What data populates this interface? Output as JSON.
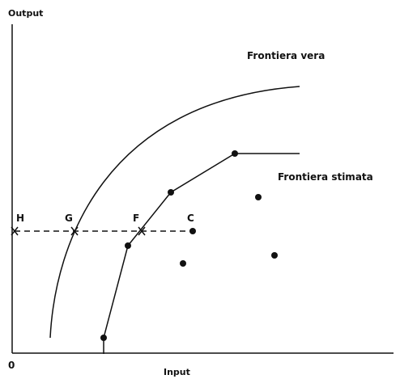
{
  "axes": {
    "y_label": "Output",
    "x_label": "Input",
    "origin": "0"
  },
  "curves": {
    "true_frontier": "Frontiera vera",
    "estimated_frontier": "Frontiera stimata"
  },
  "points": {
    "h": "H",
    "g": "G",
    "f": "F",
    "c": "C"
  }
}
